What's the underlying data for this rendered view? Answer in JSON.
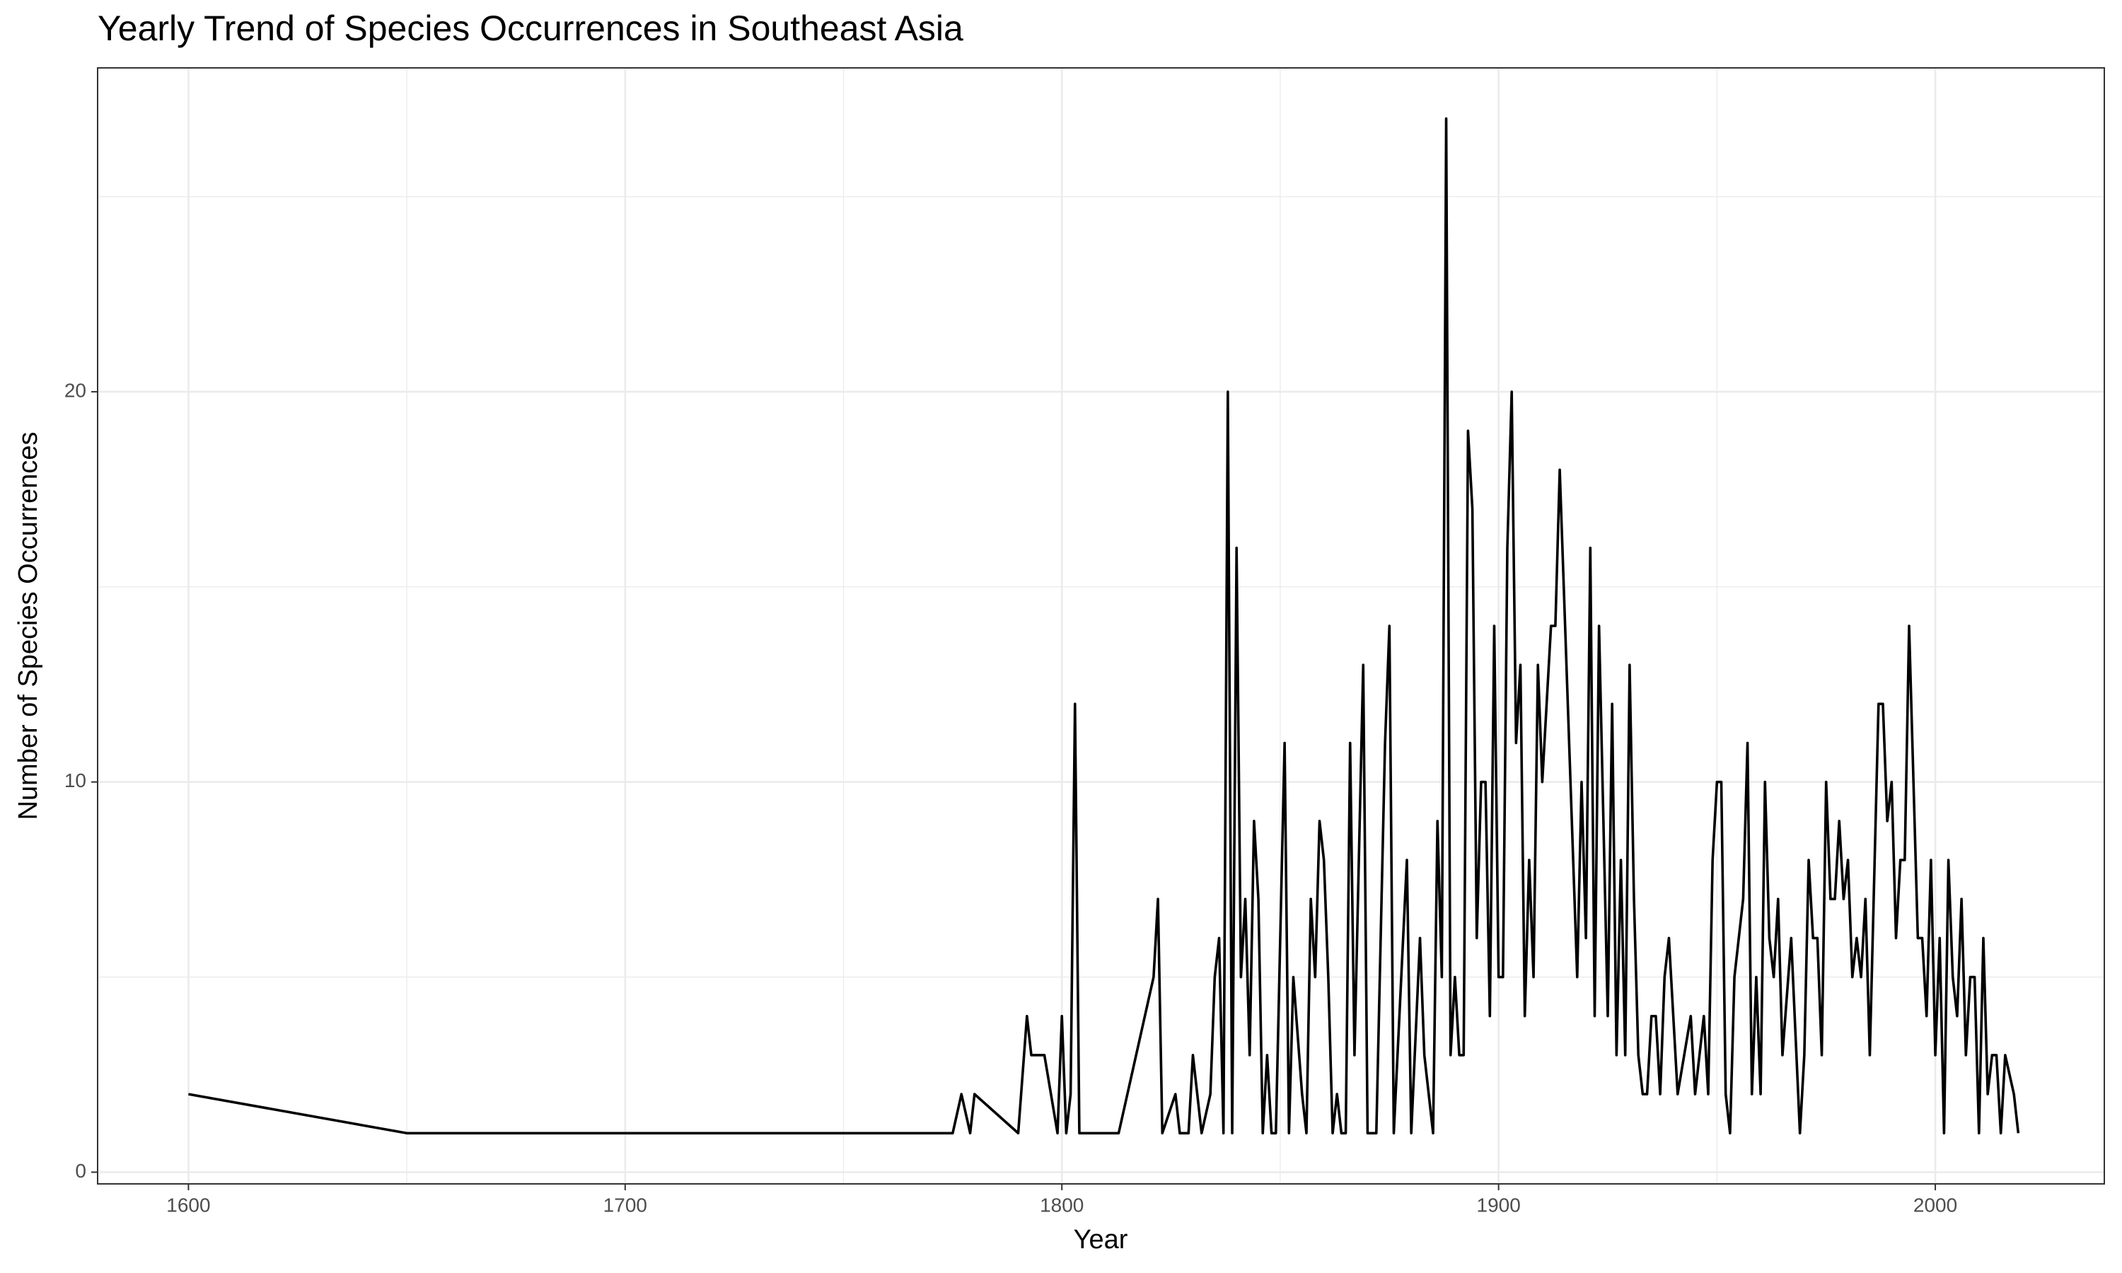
{
  "chart_data": {
    "type": "line",
    "title": "Yearly Trend of Species Occurrences in Southeast Asia",
    "x_label": "Year",
    "y_label": "Number of Species Occurrences",
    "x": [
      1600,
      1650,
      1775,
      1777,
      1779,
      1780,
      1790,
      1792,
      1793,
      1796,
      1799,
      1800,
      1801,
      1802,
      1803,
      1804,
      1813,
      1821,
      1822,
      1823,
      1826,
      1827,
      1829,
      1830,
      1832,
      1834,
      1835,
      1836,
      1837,
      1838,
      1839,
      1840,
      1841,
      1842,
      1843,
      1844,
      1845,
      1846,
      1847,
      1848,
      1849,
      1851,
      1852,
      1853,
      1855,
      1856,
      1857,
      1858,
      1859,
      1860,
      1861,
      1862,
      1863,
      1864,
      1865,
      1866,
      1867,
      1869,
      1870,
      1872,
      1874,
      1875,
      1876,
      1879,
      1880,
      1882,
      1883,
      1885,
      1886,
      1887,
      1888,
      1889,
      1890,
      1891,
      1892,
      1893,
      1894,
      1895,
      1896,
      1897,
      1898,
      1899,
      1900,
      1901,
      1902,
      1903,
      1904,
      1905,
      1906,
      1907,
      1908,
      1909,
      1910,
      1912,
      1913,
      1914,
      1918,
      1919,
      1920,
      1921,
      1922,
      1923,
      1925,
      1926,
      1927,
      1928,
      1929,
      1930,
      1931,
      1932,
      1933,
      1934,
      1935,
      1936,
      1937,
      1938,
      1939,
      1940,
      1941,
      1944,
      1945,
      1947,
      1948,
      1949,
      1950,
      1951,
      1952,
      1953,
      1954,
      1956,
      1957,
      1958,
      1959,
      1960,
      1961,
      1962,
      1963,
      1964,
      1965,
      1967,
      1969,
      1970,
      1971,
      1972,
      1973,
      1974,
      1975,
      1976,
      1977,
      1978,
      1979,
      1980,
      1981,
      1982,
      1983,
      1984,
      1985,
      1987,
      1988,
      1989,
      1990,
      1991,
      1992,
      1993,
      1994,
      1996,
      1997,
      1998,
      1999,
      2000,
      2001,
      2002,
      2003,
      2004,
      2005,
      2006,
      2007,
      2008,
      2009,
      2010,
      2011,
      2012,
      2013,
      2014,
      2015,
      2016,
      2018,
      2019
    ],
    "series": [
      {
        "name": "Occurrences",
        "color": "#000000",
        "values": [
          2,
          1,
          1,
          2,
          1,
          2,
          1,
          4,
          3,
          3,
          1,
          4,
          1,
          2,
          12,
          1,
          1,
          5,
          7,
          1,
          2,
          1,
          1,
          3,
          1,
          2,
          5,
          6,
          1,
          20,
          1,
          16,
          5,
          7,
          3,
          9,
          7,
          1,
          3,
          1,
          1,
          11,
          1,
          5,
          2,
          1,
          7,
          5,
          9,
          8,
          5,
          1,
          2,
          1,
          1,
          11,
          3,
          13,
          1,
          1,
          11,
          14,
          1,
          8,
          1,
          6,
          3,
          1,
          9,
          5,
          27,
          3,
          5,
          3,
          3,
          19,
          17,
          6,
          10,
          10,
          4,
          14,
          5,
          5,
          16,
          20,
          11,
          13,
          4,
          8,
          5,
          13,
          10,
          14,
          14,
          18,
          5,
          10,
          6,
          16,
          4,
          14,
          4,
          12,
          3,
          8,
          3,
          13,
          7,
          3,
          2,
          2,
          4,
          4,
          2,
          5,
          6,
          4,
          2,
          4,
          2,
          4,
          2,
          8,
          10,
          10,
          2,
          1,
          5,
          7,
          11,
          2,
          5,
          2,
          10,
          6,
          5,
          7,
          3,
          6,
          1,
          3,
          8,
          6,
          6,
          3,
          10,
          7,
          7,
          9,
          7,
          8,
          5,
          6,
          5,
          7,
          3,
          12,
          12,
          9,
          10,
          6,
          8,
          8,
          14,
          6,
          6,
          4,
          8,
          3,
          6,
          1,
          8,
          5,
          4,
          7,
          3,
          5,
          5,
          1,
          6,
          2,
          3,
          3,
          1,
          3,
          2,
          1
        ]
      }
    ],
    "xlim": [
      1579.2,
      2038.7
    ],
    "ylim": [
      -0.3,
      28.3
    ],
    "xticks": [
      1600,
      1700,
      1800,
      1900,
      2000
    ],
    "yticks": [
      0,
      10,
      20
    ],
    "xminorticks": [
      1650,
      1750,
      1850,
      1950
    ],
    "yminorticks": [
      5,
      15,
      25
    ],
    "grid": true
  }
}
